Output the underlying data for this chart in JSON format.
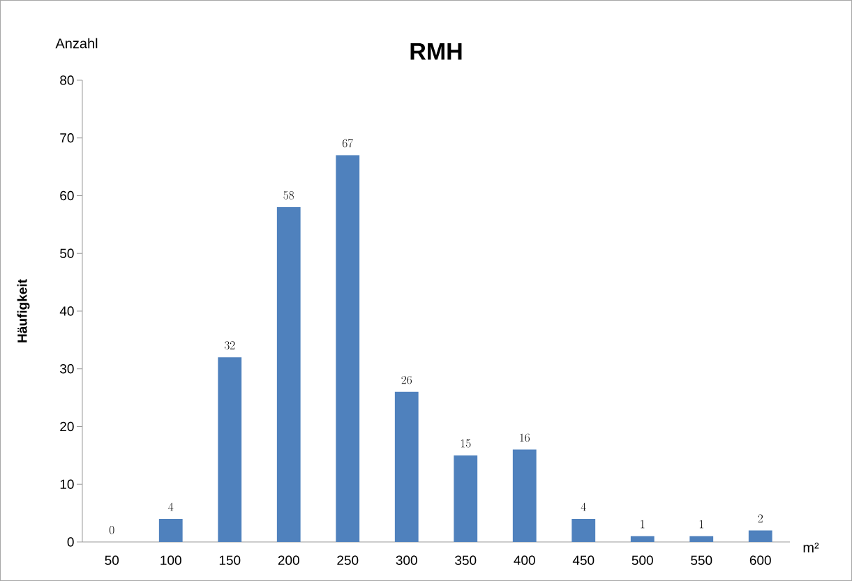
{
  "chart_data": {
    "type": "bar",
    "title": "RMH",
    "ylabel": "Häufigkeit",
    "annotations": [
      "Anzahl",
      "m²"
    ],
    "categories": [
      "50",
      "100",
      "150",
      "200",
      "250",
      "300",
      "350",
      "400",
      "450",
      "500",
      "550",
      "600"
    ],
    "values": [
      0,
      4,
      32,
      58,
      67,
      26,
      15,
      16,
      4,
      1,
      1,
      2
    ],
    "color": "#4f81bd",
    "ylim": [
      0,
      80
    ],
    "yticks": [
      0,
      10,
      20,
      30,
      40,
      50,
      60,
      70,
      80
    ],
    "data_labels": true
  }
}
